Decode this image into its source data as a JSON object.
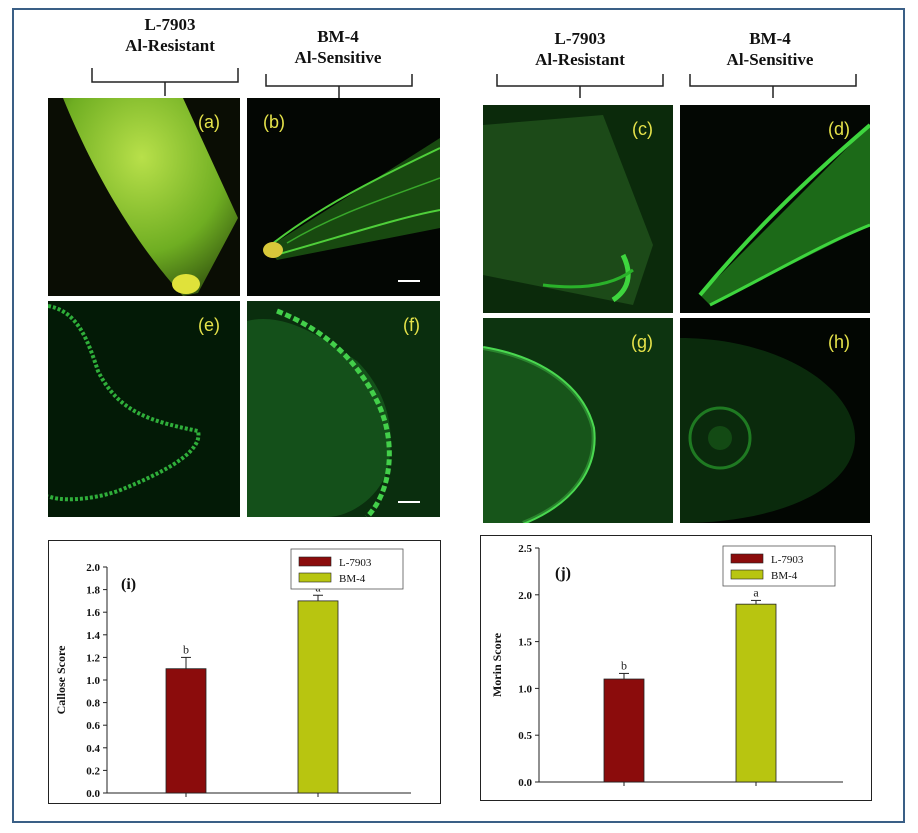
{
  "headers": [
    {
      "line1": "L-7903",
      "line2": "Al-Resistant"
    },
    {
      "line1": "BM-4",
      "line2": "Al-Sensitive"
    },
    {
      "line1": "L-7903",
      "line2": "Al-Resistant"
    },
    {
      "line1": "BM-4",
      "line2": "Al-Sensitive"
    }
  ],
  "panels": {
    "a": "(a)",
    "b": "(b)",
    "c": "(c)",
    "d": "(d)",
    "e": "(e)",
    "f": "(f)",
    "g": "(g)",
    "h": "(h)"
  },
  "colors": {
    "l7903": "#8b0c0c",
    "bm4": "#b8c510",
    "fluor": "#3ed63e",
    "frame": "#3a5f86"
  },
  "chart_data": [
    {
      "type": "bar",
      "panel_label": "(i)",
      "categories": [
        "L-7903",
        "BM-4"
      ],
      "values": [
        1.1,
        1.7
      ],
      "errors": [
        0.1,
        0.05
      ],
      "letters": [
        "b",
        "a"
      ],
      "ylabel": "Callose Score",
      "ylim": [
        0,
        2.0
      ],
      "yticks": [
        "0.0",
        "0.2",
        "0.4",
        "0.6",
        "0.8",
        "1.0",
        "1.2",
        "1.4",
        "1.6",
        "1.8",
        "2.0"
      ],
      "legend": [
        "L-7903",
        "BM-4"
      ]
    },
    {
      "type": "bar",
      "panel_label": "(j)",
      "categories": [
        "L-7903",
        "BM-4"
      ],
      "values": [
        1.1,
        1.9
      ],
      "errors": [
        0.06,
        0.04
      ],
      "letters": [
        "b",
        "a"
      ],
      "ylabel": "Morin Score",
      "ylim": [
        0,
        2.5
      ],
      "yticks": [
        "0.0",
        "0.5",
        "1.0",
        "1.5",
        "2.0",
        "2.5"
      ],
      "legend": [
        "L-7903",
        "BM-4"
      ]
    }
  ]
}
